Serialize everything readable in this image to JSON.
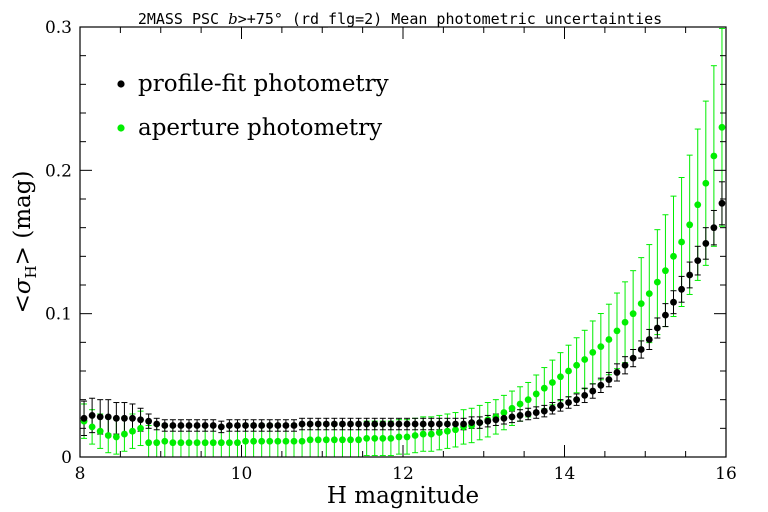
{
  "chart_data": {
    "type": "scatter",
    "title_parts": [
      "2MASS PSC ",
      "b",
      ">+75°  (rd_flg=2) Mean photometric uncertainties"
    ],
    "xlabel": "H magnitude",
    "ylabel_parts": [
      "<",
      "σ",
      "H",
      "> (mag)"
    ],
    "xlim": [
      8,
      16
    ],
    "ylim": [
      0,
      0.3
    ],
    "x_ticks": [
      8,
      10,
      12,
      14,
      16
    ],
    "x_tick_labels": [
      "8",
      "10",
      "12",
      "14",
      "16"
    ],
    "y_ticks": [
      0,
      0.1,
      0.2,
      0.3
    ],
    "y_tick_labels": [
      "0",
      "0.1",
      "0.2",
      "0.3"
    ],
    "x_minor_step": 0.5,
    "y_minor_step": 0.02,
    "legend_position": "top-left",
    "series": [
      {
        "name": "profile-fit photometry",
        "color": "#000000",
        "x": [
          8.05,
          8.15,
          8.25,
          8.35,
          8.45,
          8.55,
          8.65,
          8.75,
          8.85,
          8.95,
          9.05,
          9.15,
          9.25,
          9.35,
          9.45,
          9.55,
          9.65,
          9.75,
          9.85,
          9.95,
          10.05,
          10.15,
          10.25,
          10.35,
          10.45,
          10.55,
          10.65,
          10.75,
          10.85,
          10.95,
          11.05,
          11.15,
          11.25,
          11.35,
          11.45,
          11.55,
          11.65,
          11.75,
          11.85,
          11.95,
          12.05,
          12.15,
          12.25,
          12.35,
          12.45,
          12.55,
          12.65,
          12.75,
          12.85,
          12.95,
          13.05,
          13.15,
          13.25,
          13.35,
          13.45,
          13.55,
          13.65,
          13.75,
          13.85,
          13.95,
          14.05,
          14.15,
          14.25,
          14.35,
          14.45,
          14.55,
          14.65,
          14.75,
          14.85,
          14.95,
          15.05,
          15.15,
          15.25,
          15.35,
          15.45,
          15.55,
          15.65,
          15.75,
          15.85,
          15.95
        ],
        "y": [
          0.027,
          0.029,
          0.028,
          0.028,
          0.027,
          0.027,
          0.027,
          0.026,
          0.025,
          0.023,
          0.022,
          0.022,
          0.022,
          0.022,
          0.022,
          0.022,
          0.022,
          0.021,
          0.022,
          0.022,
          0.022,
          0.022,
          0.022,
          0.022,
          0.022,
          0.022,
          0.022,
          0.023,
          0.023,
          0.023,
          0.023,
          0.023,
          0.023,
          0.023,
          0.023,
          0.023,
          0.023,
          0.023,
          0.023,
          0.023,
          0.023,
          0.023,
          0.023,
          0.023,
          0.023,
          0.023,
          0.023,
          0.023,
          0.024,
          0.024,
          0.025,
          0.026,
          0.027,
          0.028,
          0.029,
          0.03,
          0.031,
          0.032,
          0.034,
          0.036,
          0.038,
          0.04,
          0.043,
          0.046,
          0.05,
          0.054,
          0.059,
          0.064,
          0.069,
          0.075,
          0.082,
          0.09,
          0.099,
          0.108,
          0.117,
          0.127,
          0.137,
          0.149,
          0.16,
          0.177
        ],
        "err": [
          0.012,
          0.012,
          0.012,
          0.012,
          0.011,
          0.011,
          0.01,
          0.008,
          0.005,
          0.004,
          0.004,
          0.004,
          0.004,
          0.004,
          0.004,
          0.004,
          0.004,
          0.004,
          0.004,
          0.004,
          0.004,
          0.004,
          0.004,
          0.004,
          0.004,
          0.004,
          0.004,
          0.004,
          0.004,
          0.004,
          0.004,
          0.004,
          0.004,
          0.004,
          0.004,
          0.004,
          0.004,
          0.004,
          0.004,
          0.004,
          0.004,
          0.004,
          0.004,
          0.004,
          0.004,
          0.004,
          0.004,
          0.004,
          0.004,
          0.004,
          0.004,
          0.004,
          0.004,
          0.004,
          0.004,
          0.004,
          0.004,
          0.004,
          0.004,
          0.004,
          0.004,
          0.004,
          0.005,
          0.005,
          0.005,
          0.005,
          0.006,
          0.006,
          0.006,
          0.006,
          0.007,
          0.007,
          0.008,
          0.008,
          0.009,
          0.009,
          0.01,
          0.011,
          0.012,
          0.015
        ]
      },
      {
        "name": "aperture photometry",
        "color": "#00ee00",
        "x": [
          8.05,
          8.15,
          8.25,
          8.35,
          8.45,
          8.55,
          8.65,
          8.75,
          8.85,
          8.95,
          9.05,
          9.15,
          9.25,
          9.35,
          9.45,
          9.55,
          9.65,
          9.75,
          9.85,
          9.95,
          10.05,
          10.15,
          10.25,
          10.35,
          10.45,
          10.55,
          10.65,
          10.75,
          10.85,
          10.95,
          11.05,
          11.15,
          11.25,
          11.35,
          11.45,
          11.55,
          11.65,
          11.75,
          11.85,
          11.95,
          12.05,
          12.15,
          12.25,
          12.35,
          12.45,
          12.55,
          12.65,
          12.75,
          12.85,
          12.95,
          13.05,
          13.15,
          13.25,
          13.35,
          13.45,
          13.55,
          13.65,
          13.75,
          13.85,
          13.95,
          14.05,
          14.15,
          14.25,
          14.35,
          14.45,
          14.55,
          14.65,
          14.75,
          14.85,
          14.95,
          15.05,
          15.15,
          15.25,
          15.35,
          15.45,
          15.55,
          15.65,
          15.75,
          15.85,
          15.95
        ],
        "y": [
          0.025,
          0.021,
          0.018,
          0.015,
          0.014,
          0.016,
          0.018,
          0.02,
          0.01,
          0.01,
          0.011,
          0.01,
          0.01,
          0.01,
          0.01,
          0.01,
          0.01,
          0.01,
          0.01,
          0.01,
          0.011,
          0.011,
          0.011,
          0.011,
          0.011,
          0.011,
          0.011,
          0.011,
          0.012,
          0.012,
          0.012,
          0.012,
          0.012,
          0.012,
          0.012,
          0.013,
          0.013,
          0.013,
          0.013,
          0.014,
          0.014,
          0.015,
          0.016,
          0.016,
          0.017,
          0.018,
          0.019,
          0.021,
          0.022,
          0.024,
          0.026,
          0.028,
          0.031,
          0.034,
          0.037,
          0.04,
          0.044,
          0.048,
          0.052,
          0.056,
          0.06,
          0.064,
          0.068,
          0.073,
          0.077,
          0.082,
          0.088,
          0.094,
          0.1,
          0.107,
          0.114,
          0.122,
          0.13,
          0.14,
          0.15,
          0.162,
          0.176,
          0.191,
          0.21,
          0.23
        ]
      }
    ]
  }
}
